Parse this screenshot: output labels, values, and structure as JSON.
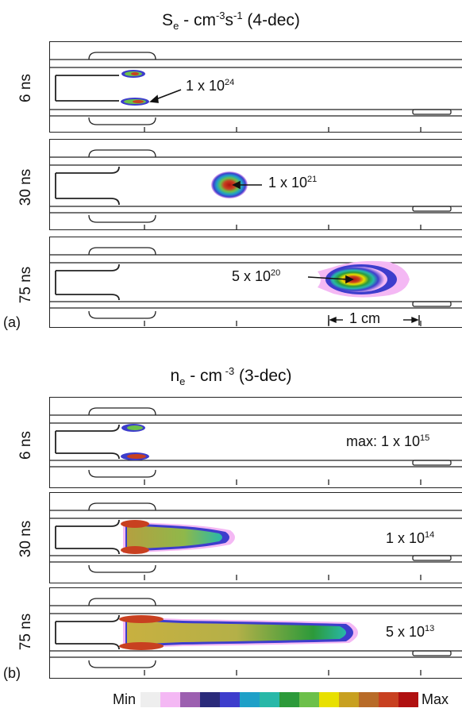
{
  "panel_a": {
    "title_main": "S",
    "title_sub": "e",
    "title_unit_1": " - cm",
    "title_exp_1": "-3",
    "title_unit_2": "s",
    "title_exp_2": "-1",
    "title_tail": " (4-dec)",
    "letter": "(a)",
    "rows": [
      {
        "label": "6 ns",
        "anno_base": "1 x 10",
        "anno_exp": "24"
      },
      {
        "label": "30 ns",
        "anno_base": "1 x 10",
        "anno_exp": "21"
      },
      {
        "label": "75 ns",
        "anno_base": "5 x 10",
        "anno_exp": "20"
      }
    ],
    "scale_bar": "1 cm"
  },
  "panel_b": {
    "title_main": "n",
    "title_sub": "e",
    "title_unit": " - cm",
    "title_exp": " -3",
    "title_tail": " (3-dec)",
    "letter": "(b)",
    "rows": [
      {
        "label": "6 ns",
        "anno_base": "max: 1 x 10",
        "anno_exp": "15"
      },
      {
        "label": "30 ns",
        "anno_base": "1 x 10",
        "anno_exp": "14"
      },
      {
        "label": "75 ns",
        "anno_base": "5 x 10",
        "anno_exp": "13"
      }
    ]
  },
  "colorbar": {
    "min_label": "Min",
    "max_label": "Max",
    "colors": [
      "#eeeeee",
      "#f4b8f4",
      "#9c5fb0",
      "#2a2a7a",
      "#3d3dcc",
      "#1ea0c8",
      "#28b8a8",
      "#2c9a3a",
      "#6cc04a",
      "#e8e000",
      "#c8a020",
      "#b86b28",
      "#c84020",
      "#b01010"
    ]
  }
}
